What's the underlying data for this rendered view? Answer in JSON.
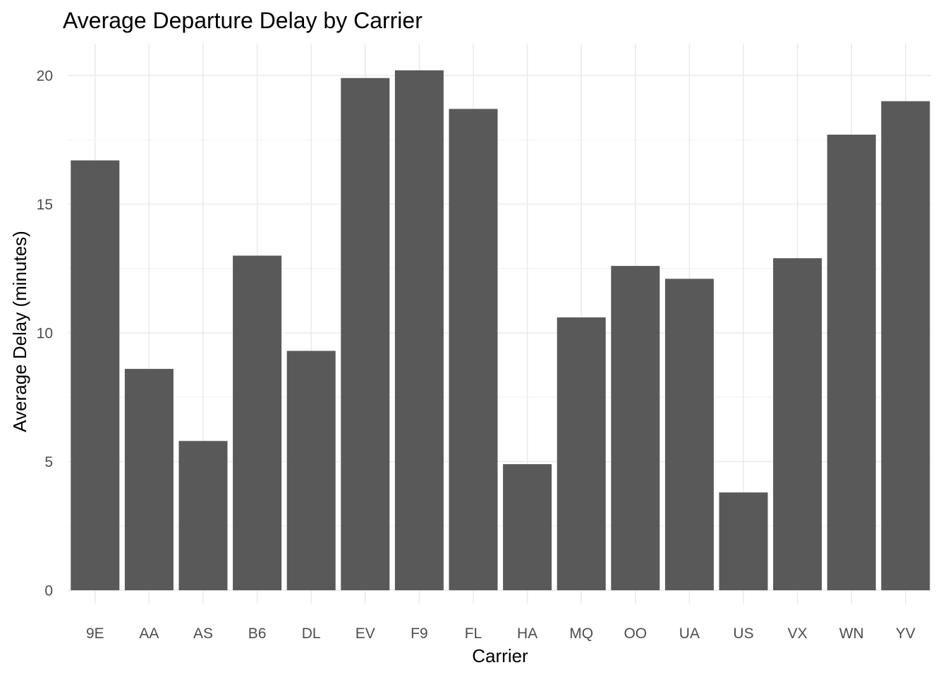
{
  "chart_data": {
    "type": "bar",
    "title": "Average Departure Delay by Carrier",
    "xlabel": "Carrier",
    "ylabel": "Average Delay (minutes)",
    "categories": [
      "9E",
      "AA",
      "AS",
      "B6",
      "DL",
      "EV",
      "F9",
      "FL",
      "HA",
      "MQ",
      "OO",
      "UA",
      "US",
      "VX",
      "WN",
      "YV"
    ],
    "values": [
      16.7,
      8.6,
      5.8,
      13.0,
      9.3,
      19.9,
      20.2,
      18.7,
      4.9,
      10.6,
      12.6,
      12.1,
      3.8,
      12.9,
      17.7,
      19.0
    ],
    "ylim": [
      0,
      21
    ],
    "yticks": [
      0,
      5,
      10,
      15,
      20
    ],
    "grid": true,
    "bar_color": "#595959",
    "grid_color": "#ebebeb",
    "legend": "none"
  }
}
